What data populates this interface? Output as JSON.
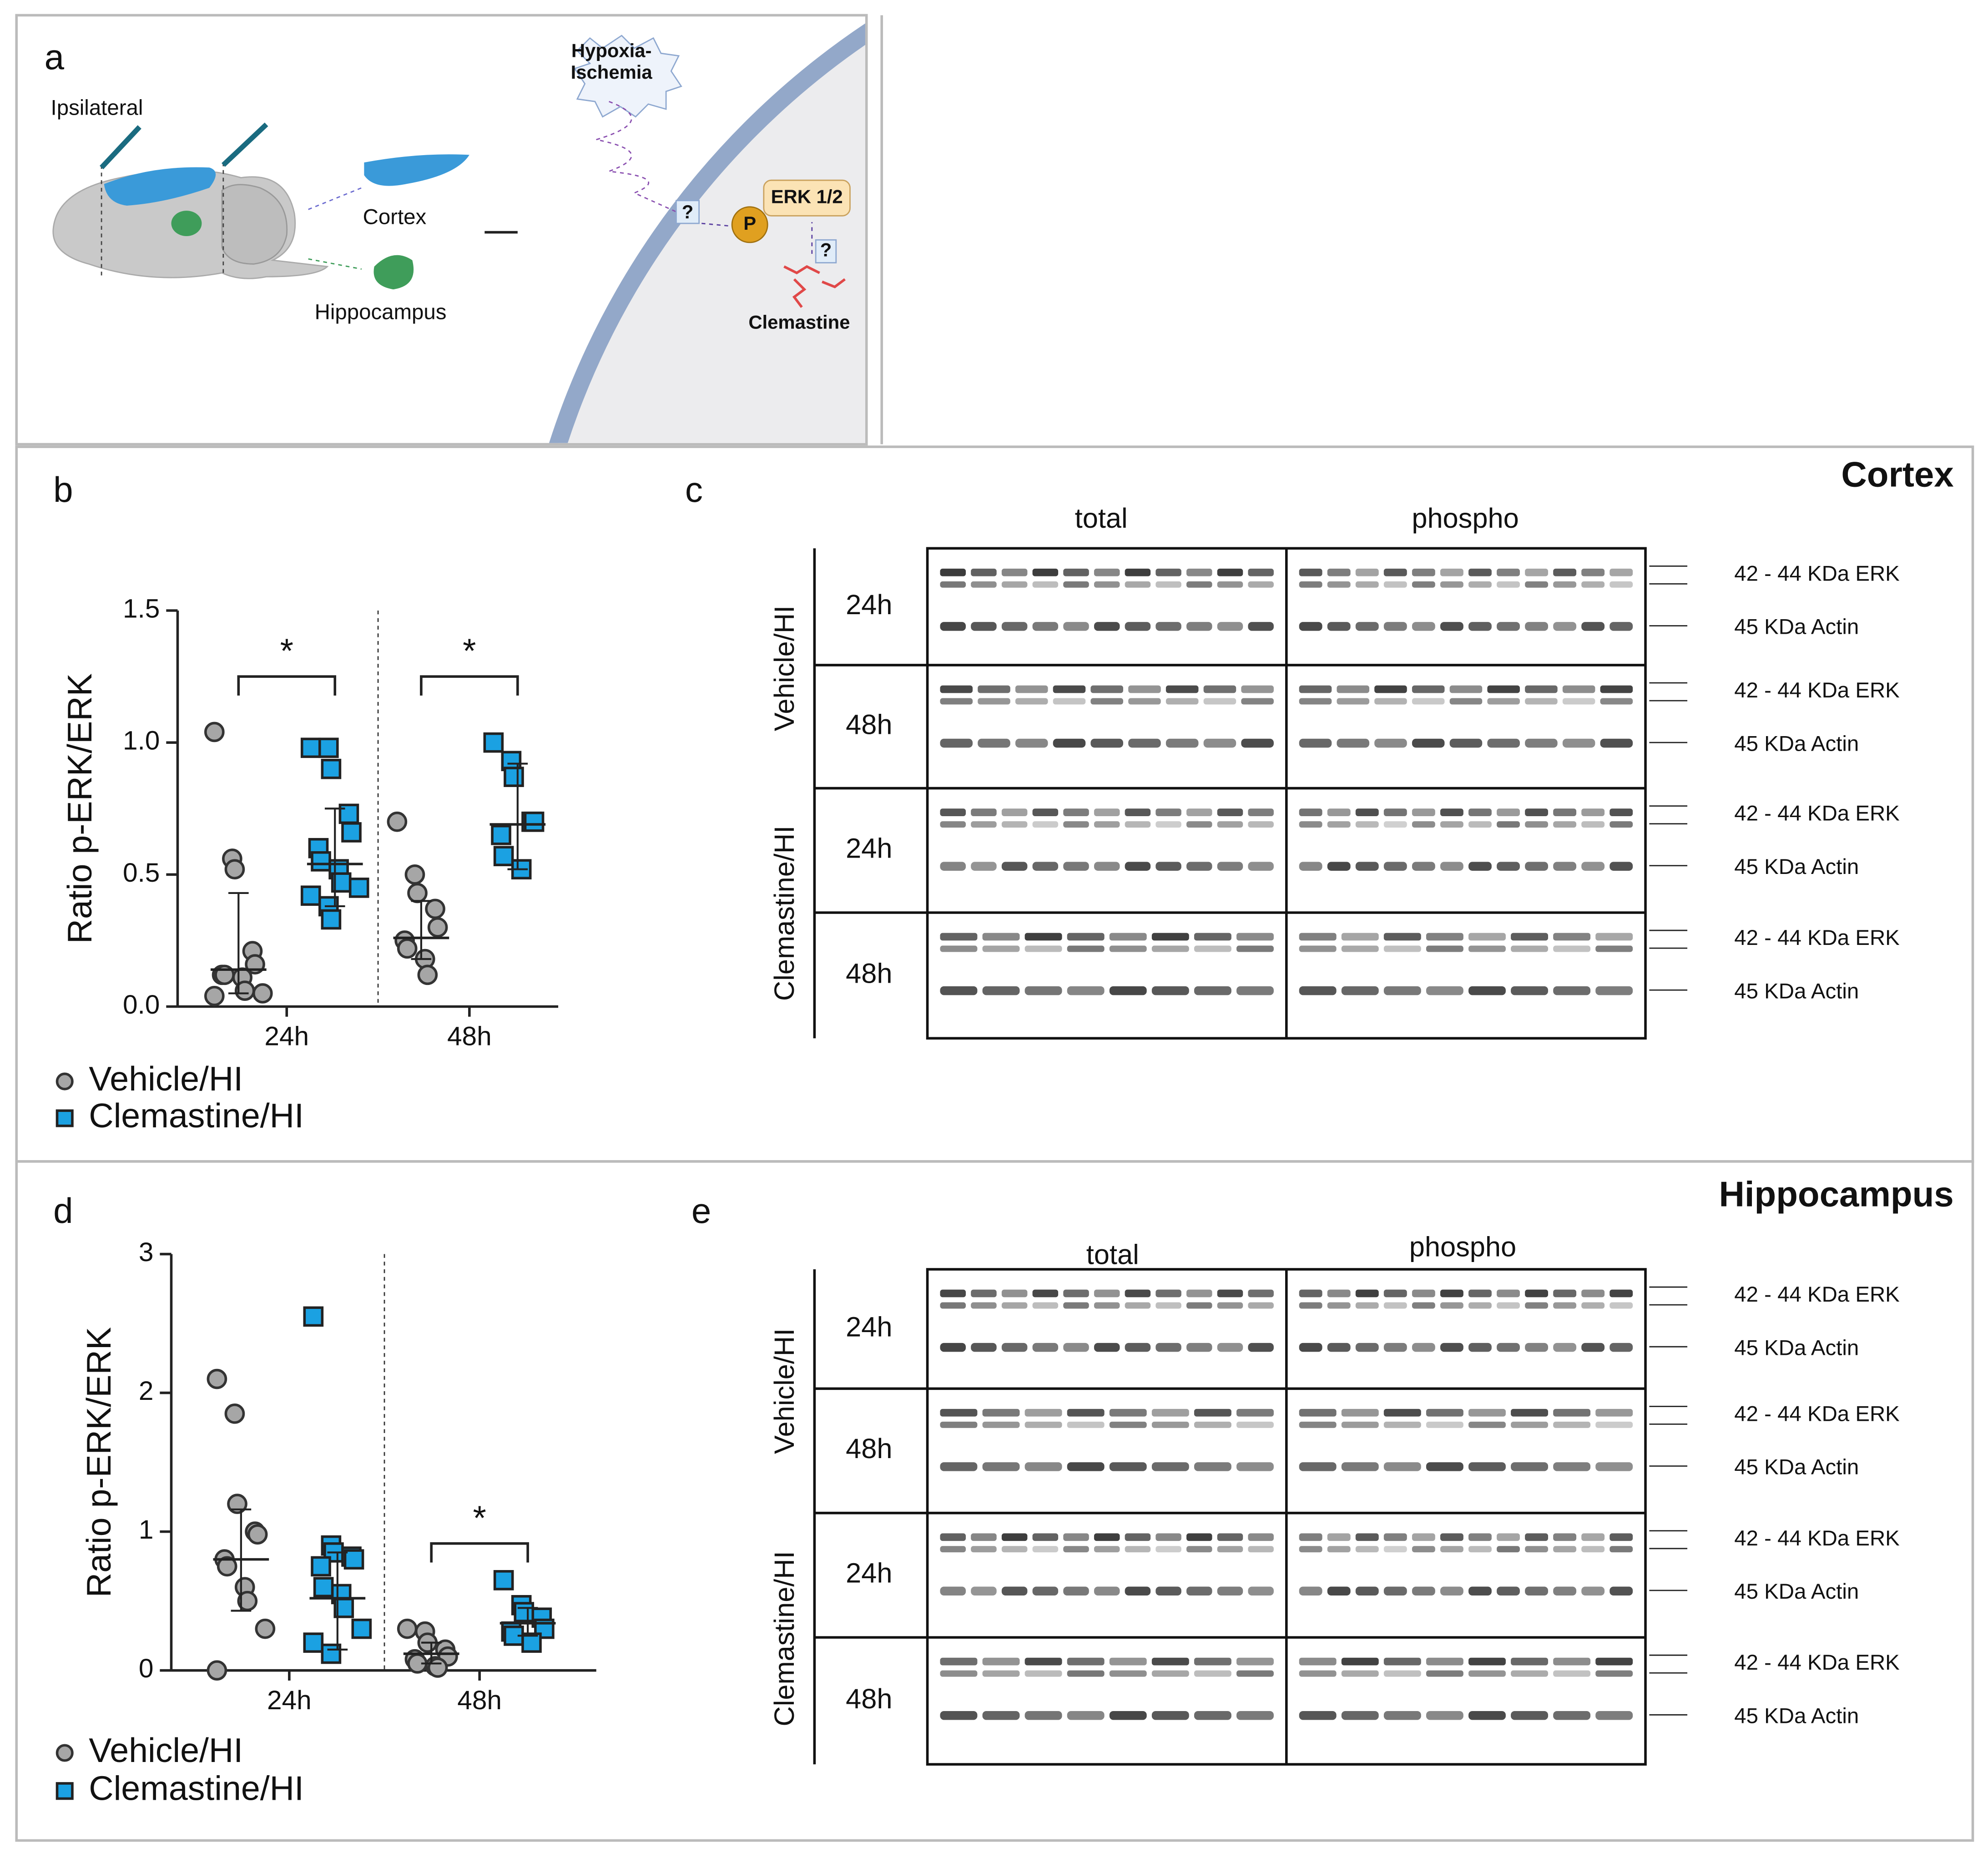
{
  "panel_labels": [
    "a",
    "b",
    "c",
    "d",
    "e"
  ],
  "diagram": {
    "ipsilateral": "Ipsilateral",
    "cortex": "Cortex",
    "hippocampus": "Hippocampus",
    "insult": [
      "Hypoxia-",
      "Ischemia"
    ],
    "kinase": "ERK 1/2",
    "phospho": "P",
    "unknown": "?",
    "drug": "Clemastine"
  },
  "chart_data": [
    {
      "type": "scatter",
      "ylabel": "Ratio p-ERK/ERK",
      "categories": [
        "24h",
        "48h"
      ],
      "ylim": [
        0,
        1.5
      ],
      "yticks": [
        {
          "value": 0,
          "label": "0.0"
        },
        {
          "value": 0.5,
          "label": "0.5"
        },
        {
          "value": 1,
          "label": "1.0"
        },
        {
          "value": 1.5,
          "label": "1.5"
        }
      ],
      "annotations": [
        "*",
        "*"
      ],
      "series": [
        {
          "name": "Vehicle/HI",
          "color": "#a6a6a6",
          "marker": "circle",
          "values": [
            [
              1.04,
              0.56,
              0.52,
              0.21,
              0.16,
              0.12,
              0.12,
              0.11,
              0.06,
              0.05,
              0.04
            ],
            [
              0.7,
              0.5,
              0.43,
              0.37,
              0.3,
              0.25,
              0.22,
              0.18,
              0.12
            ]
          ],
          "center": [
            0.14,
            0.26
          ],
          "upper": [
            0.43,
            0.4
          ],
          "lower": [
            0.05,
            0.18
          ]
        },
        {
          "name": "Clemastine/HI",
          "color": "#1ba1e2",
          "marker": "square",
          "values": [
            [
              0.98,
              0.98,
              0.9,
              0.73,
              0.66,
              0.6,
              0.55,
              0.52,
              0.47,
              0.45,
              0.42,
              0.38,
              0.33
            ],
            [
              1.0,
              0.93,
              0.87,
              0.7,
              0.7,
              0.65,
              0.57,
              0.52
            ]
          ],
          "center": [
            0.54,
            0.69
          ],
          "upper": [
            0.75,
            0.92
          ],
          "lower": [
            0.38,
            0.52
          ]
        }
      ]
    },
    {
      "type": "scatter",
      "ylabel": "Ratio p-ERK/ERK",
      "categories": [
        "24h",
        "48h"
      ],
      "ylim": [
        0,
        3
      ],
      "yticks": [
        0,
        1,
        2,
        3
      ],
      "annotations": [
        null,
        "*"
      ],
      "series": [
        {
          "name": "Vehicle/HI",
          "color": "#a6a6a6",
          "marker": "circle",
          "values": [
            [
              2.1,
              1.85,
              1.2,
              1.0,
              0.98,
              0.8,
              0.75,
              0.6,
              0.5,
              0.3,
              0
            ],
            [
              0.3,
              0.28,
              0.2,
              0.15,
              0.1,
              0.08,
              0.05,
              0.03,
              0.02
            ]
          ],
          "center": [
            0.8,
            0.12
          ],
          "upper": [
            1.16,
            0.2
          ],
          "lower": [
            0.43,
            0.05
          ]
        },
        {
          "name": "Clemastine/HI",
          "color": "#1ba1e2",
          "marker": "square",
          "values": [
            [
              2.55,
              0.9,
              0.85,
              0.82,
              0.8,
              0.75,
              0.6,
              0.55,
              0.45,
              0.3,
              0.2,
              0.12
            ],
            [
              0.65,
              0.47,
              0.42,
              0.38,
              0.3,
              0.28,
              0.25,
              0.2
            ]
          ],
          "center": [
            0.52,
            0.34
          ],
          "upper": [
            0.85,
            0.45
          ],
          "lower": [
            0.15,
            0.25
          ]
        }
      ]
    }
  ],
  "blots": [
    {
      "title": "Cortex",
      "columns": [
        "total",
        "phospho"
      ],
      "groups": [
        "Vehicle/HI",
        "Clemastine/HI"
      ],
      "times": [
        "24h",
        "48h"
      ],
      "bands": [
        "42 - 44 KDa ERK",
        "45 KDa Actin"
      ]
    },
    {
      "title": "Hippocampus",
      "columns": [
        "total",
        "phospho"
      ],
      "groups": [
        "Vehicle/HI",
        "Clemastine/HI"
      ],
      "times": [
        "24h",
        "48h"
      ],
      "bands": [
        "42 - 44 KDa ERK",
        "45 KDa Actin"
      ]
    }
  ]
}
